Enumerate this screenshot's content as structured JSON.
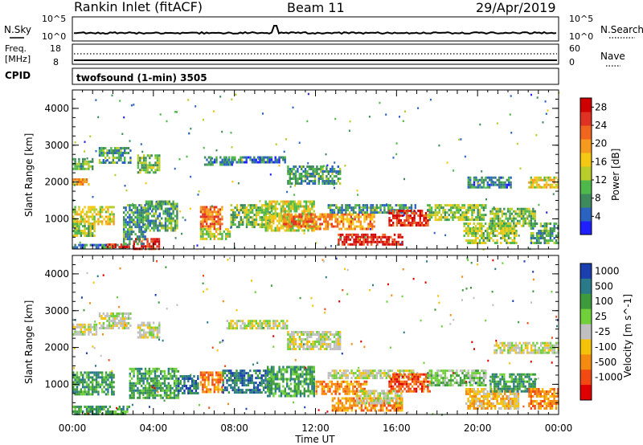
{
  "header": {
    "site": "Rankin Inlet (fitACF)",
    "beam": "Beam 11",
    "date": "29/Apr/2019"
  },
  "aux_panels": {
    "nsky_label": "N.Sky",
    "nsky_ticks": [
      "10^5",
      "10^0"
    ],
    "nsearch_label": "N.Search",
    "nsearch_ticks": [
      "10^5",
      "10^0"
    ],
    "freq_label_1": "Freq.",
    "freq_label_2": "[MHz]",
    "freq_ticks": [
      "18",
      "8"
    ],
    "nave_label": "Nave",
    "nave_ticks": [
      "60",
      "0"
    ],
    "cpid_label": "CPID",
    "cpid_value": "twofsound (1-min) 3505"
  },
  "chart_data": [
    {
      "type": "heatmap",
      "title": "",
      "xlabel": "",
      "ylabel": "Slant Range [km]",
      "xlim": [
        0,
        24
      ],
      "ylim": [
        180,
        4500
      ],
      "yticks": [
        "1000",
        "2000",
        "3000",
        "4000"
      ],
      "colorbar": {
        "label": "Power [dB]",
        "ticks": [
          "4",
          "8",
          "12",
          "16",
          "20",
          "24",
          "28"
        ],
        "range": [
          0,
          30
        ],
        "colors": [
          "#1f1fff",
          "#2a64c0",
          "#3f8a5c",
          "#4fb84a",
          "#b8cc2a",
          "#f5c814",
          "#f59a1e",
          "#f0661e",
          "#e03222",
          "#d00000"
        ]
      },
      "echo_regions": [
        {
          "t0": 0.0,
          "t1": 2.8,
          "r0": 200,
          "r1": 320,
          "value": 6
        },
        {
          "t0": 1.7,
          "t1": 2.8,
          "r0": 200,
          "r1": 330,
          "value": 26
        },
        {
          "t0": 3.0,
          "t1": 4.3,
          "r0": 200,
          "r1": 480,
          "value": 27
        },
        {
          "t0": 0.0,
          "t1": 1.1,
          "r0": 560,
          "r1": 900,
          "value": 12
        },
        {
          "t0": 0.0,
          "t1": 2.0,
          "r0": 850,
          "r1": 1350,
          "value": 15
        },
        {
          "t0": 0.0,
          "t1": 0.8,
          "r0": 1950,
          "r1": 2100,
          "value": 18
        },
        {
          "t0": 0.0,
          "t1": 1.0,
          "r0": 2350,
          "r1": 2650,
          "value": 10
        },
        {
          "t0": 1.3,
          "t1": 2.9,
          "r0": 2550,
          "r1": 2950,
          "value": 9
        },
        {
          "t0": 3.2,
          "t1": 4.3,
          "r0": 2250,
          "r1": 2750,
          "value": 11
        },
        {
          "t0": 2.5,
          "t1": 3.6,
          "r0": 300,
          "r1": 1400,
          "value": 8
        },
        {
          "t0": 3.6,
          "t1": 5.2,
          "r0": 700,
          "r1": 1500,
          "value": 9
        },
        {
          "t0": 6.3,
          "t1": 7.4,
          "r0": 750,
          "r1": 1350,
          "value": 22
        },
        {
          "t0": 6.3,
          "t1": 7.8,
          "r0": 450,
          "r1": 750,
          "value": 14
        },
        {
          "t0": 6.5,
          "t1": 7.9,
          "r0": 2450,
          "r1": 2700,
          "value": 7
        },
        {
          "t0": 7.8,
          "t1": 9.8,
          "r0": 800,
          "r1": 1400,
          "value": 11
        },
        {
          "t0": 9.5,
          "t1": 11.9,
          "r0": 700,
          "r1": 1500,
          "value": 14
        },
        {
          "t0": 10.4,
          "t1": 12.0,
          "r0": 800,
          "r1": 1150,
          "value": 22
        },
        {
          "t0": 7.5,
          "t1": 10.5,
          "r0": 2550,
          "r1": 2700,
          "value": 6
        },
        {
          "t0": 10.6,
          "t1": 13.2,
          "r0": 1950,
          "r1": 2450,
          "value": 8
        },
        {
          "t0": 11.9,
          "t1": 14.9,
          "r0": 750,
          "r1": 1150,
          "value": 20
        },
        {
          "t0": 13.1,
          "t1": 16.3,
          "r0": 300,
          "r1": 600,
          "value": 27
        },
        {
          "t0": 12.6,
          "t1": 16.9,
          "r0": 1150,
          "r1": 1400,
          "value": 8
        },
        {
          "t0": 15.6,
          "t1": 17.6,
          "r0": 850,
          "r1": 1250,
          "value": 26
        },
        {
          "t0": 17.5,
          "t1": 20.4,
          "r0": 950,
          "r1": 1400,
          "value": 12
        },
        {
          "t0": 19.3,
          "t1": 21.9,
          "r0": 350,
          "r1": 900,
          "value": 13
        },
        {
          "t0": 20.6,
          "t1": 22.8,
          "r0": 800,
          "r1": 1300,
          "value": 11
        },
        {
          "t0": 19.5,
          "t1": 21.6,
          "r0": 1850,
          "r1": 2150,
          "value": 7
        },
        {
          "t0": 22.5,
          "t1": 24.0,
          "r0": 1850,
          "r1": 2150,
          "value": 16
        },
        {
          "t0": 22.6,
          "t1": 24.0,
          "r0": 350,
          "r1": 900,
          "value": 9
        }
      ]
    },
    {
      "type": "heatmap",
      "title": "",
      "xlabel": "Time UT",
      "ylabel": "Slant Range [km]",
      "xlim": [
        0,
        24
      ],
      "ylim": [
        180,
        4500
      ],
      "xticks": [
        "00:00",
        "04:00",
        "08:00",
        "12:00",
        "16:00",
        "20:00",
        "00:00"
      ],
      "yticks": [
        "1000",
        "2000",
        "3000",
        "4000"
      ],
      "colorbar": {
        "label": "Velocity [m s^-1]",
        "ticks": [
          "1000",
          "500",
          "100",
          "25",
          "-25",
          "-100",
          "-500",
          "-1000"
        ],
        "bands": [
          {
            "label": "1000",
            "color": "#1c3fb0"
          },
          {
            "label": "500",
            "color": "#2a7a8a"
          },
          {
            "label": "100",
            "color": "#3d9a3d"
          },
          {
            "label": "25",
            "color": "#6fd03a"
          },
          {
            "label": "0",
            "color": "#c0c0c0"
          },
          {
            "label": "-25",
            "color": "#f5c20a"
          },
          {
            "label": "-100",
            "color": "#f58a10"
          },
          {
            "label": "-500",
            "color": "#f24a12"
          },
          {
            "label": "-1000",
            "color": "#e00000"
          }
        ]
      },
      "echo_regions": [
        {
          "t0": 0.0,
          "t1": 2.8,
          "r0": 200,
          "r1": 420,
          "value": 2
        },
        {
          "t0": 0.0,
          "t1": 2.0,
          "r0": 700,
          "r1": 1350,
          "value": 2
        },
        {
          "t0": 0.0,
          "t1": 1.2,
          "r0": 2350,
          "r1": 2650,
          "value": 4
        },
        {
          "t0": 1.3,
          "t1": 2.9,
          "r0": 2550,
          "r1": 2950,
          "value": 4
        },
        {
          "t0": 3.2,
          "t1": 4.3,
          "r0": 2250,
          "r1": 2700,
          "value": 4
        },
        {
          "t0": 2.8,
          "t1": 5.2,
          "r0": 600,
          "r1": 1450,
          "value": 2
        },
        {
          "t0": 5.2,
          "t1": 6.2,
          "r0": 750,
          "r1": 1250,
          "value": 1
        },
        {
          "t0": 6.3,
          "t1": 7.4,
          "r0": 800,
          "r1": 1350,
          "value": 6
        },
        {
          "t0": 7.4,
          "t1": 9.8,
          "r0": 800,
          "r1": 1400,
          "value": 1
        },
        {
          "t0": 7.6,
          "t1": 10.6,
          "r0": 2550,
          "r1": 2750,
          "value": 4
        },
        {
          "t0": 9.6,
          "t1": 11.9,
          "r0": 700,
          "r1": 1500,
          "value": 2
        },
        {
          "t0": 10.6,
          "t1": 13.2,
          "r0": 1950,
          "r1": 2450,
          "value": 4
        },
        {
          "t0": 12.0,
          "t1": 14.5,
          "r0": 750,
          "r1": 1100,
          "value": 6
        },
        {
          "t0": 12.6,
          "t1": 17.0,
          "r0": 1150,
          "r1": 1400,
          "value": 4
        },
        {
          "t0": 12.8,
          "t1": 16.3,
          "r0": 300,
          "r1": 650,
          "value": 6
        },
        {
          "t0": 14.0,
          "t1": 16.2,
          "r0": 500,
          "r1": 850,
          "value": 4
        },
        {
          "t0": 15.6,
          "t1": 17.6,
          "r0": 800,
          "r1": 1300,
          "value": 7
        },
        {
          "t0": 17.5,
          "t1": 20.4,
          "r0": 950,
          "r1": 1400,
          "value": 3
        },
        {
          "t0": 19.4,
          "t1": 22.0,
          "r0": 350,
          "r1": 900,
          "value": 5
        },
        {
          "t0": 20.6,
          "t1": 22.8,
          "r0": 800,
          "r1": 1300,
          "value": 2
        },
        {
          "t0": 20.8,
          "t1": 24.0,
          "r0": 1850,
          "r1": 2150,
          "value": 4
        },
        {
          "t0": 22.5,
          "t1": 24.0,
          "r0": 350,
          "r1": 900,
          "value": 6
        }
      ]
    }
  ]
}
